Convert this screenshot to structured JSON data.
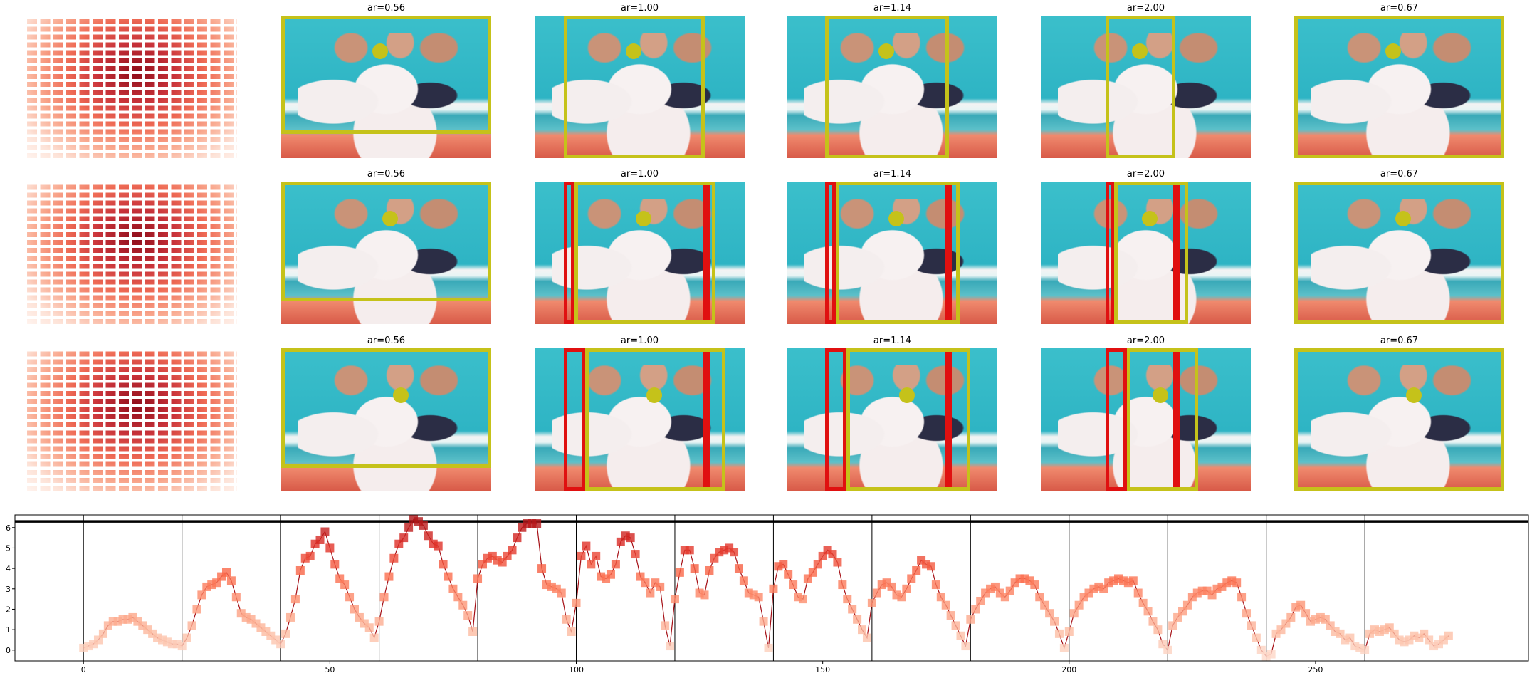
{
  "panel_titles": [
    [
      "ar=0.56",
      "ar=1.00",
      "ar=1.14",
      "ar=2.00",
      "ar=0.67"
    ],
    [
      "ar=0.56",
      "ar=1.00",
      "ar=1.14",
      "ar=2.00",
      "ar=0.67"
    ],
    [
      "ar=0.56",
      "ar=1.00",
      "ar=1.14",
      "ar=2.00",
      "ar=0.67"
    ]
  ],
  "chart_data": {
    "type": "line",
    "x": [
      0,
      1,
      2,
      3,
      4,
      5,
      6,
      7,
      8,
      9,
      10,
      11,
      12,
      13,
      14,
      15,
      16,
      17,
      18,
      19,
      20,
      21,
      22,
      23,
      24,
      25,
      26,
      27,
      28,
      29,
      30,
      31,
      32,
      33,
      34,
      35,
      36,
      37,
      38,
      39,
      40,
      41,
      42,
      43,
      44,
      45,
      46,
      47,
      48,
      49,
      50,
      51,
      52,
      53,
      54,
      55,
      56,
      57,
      58,
      59,
      60,
      61,
      62,
      63,
      64,
      65,
      66,
      67,
      68,
      69,
      70,
      71,
      72,
      73,
      74,
      75,
      76,
      77,
      78,
      79,
      80,
      81,
      82,
      83,
      84,
      85,
      86,
      87,
      88,
      89,
      90,
      91,
      92,
      93,
      94,
      95,
      96,
      97,
      98,
      99,
      100,
      101,
      102,
      103,
      104,
      105,
      106,
      107,
      108,
      109,
      110,
      111,
      112,
      113,
      114,
      115,
      116,
      117,
      118,
      119,
      120,
      121,
      122,
      123,
      124,
      125,
      126,
      127,
      128,
      129,
      130,
      131,
      132,
      133,
      134,
      135,
      136,
      137,
      138,
      139,
      140,
      141,
      142,
      143,
      144,
      145,
      146,
      147,
      148,
      149,
      150,
      151,
      152,
      153,
      154,
      155,
      156,
      157,
      158,
      159,
      160,
      161,
      162,
      163,
      164,
      165,
      166,
      167,
      168,
      169,
      170,
      171,
      172,
      173,
      174,
      175,
      176,
      177,
      178,
      179,
      180,
      181,
      182,
      183,
      184,
      185,
      186,
      187,
      188,
      189,
      190,
      191,
      192,
      193,
      194,
      195,
      196,
      197,
      198,
      199,
      200,
      201,
      202,
      203,
      204,
      205,
      206,
      207,
      208,
      209,
      210,
      211,
      212,
      213,
      214,
      215,
      216,
      217,
      218,
      219,
      220,
      221,
      222,
      223,
      224,
      225,
      226,
      227,
      228,
      229,
      230,
      231,
      232,
      233,
      234,
      235,
      236,
      237,
      238,
      239,
      240,
      241,
      242,
      243,
      244,
      245,
      246,
      247,
      248,
      249,
      250,
      251,
      252,
      253,
      254,
      255,
      256,
      257,
      258,
      259,
      260,
      261,
      262,
      263,
      264,
      265,
      266,
      267,
      268,
      269,
      270,
      271,
      272,
      273,
      274,
      275,
      276,
      277
    ],
    "values": [
      0.1,
      0.2,
      0.3,
      0.5,
      0.8,
      1.2,
      1.4,
      1.4,
      1.5,
      1.5,
      1.6,
      1.4,
      1.2,
      1.0,
      0.8,
      0.6,
      0.5,
      0.4,
      0.3,
      0.3,
      0.2,
      0.6,
      1.2,
      2.0,
      2.7,
      3.1,
      3.2,
      3.3,
      3.6,
      3.8,
      3.4,
      2.6,
      1.8,
      1.6,
      1.5,
      1.3,
      1.1,
      0.9,
      0.7,
      0.5,
      0.3,
      0.8,
      1.6,
      2.5,
      3.9,
      4.5,
      4.6,
      5.2,
      5.4,
      5.8,
      5.0,
      4.2,
      3.5,
      3.2,
      2.6,
      2.0,
      1.6,
      1.3,
      1.1,
      0.6,
      1.4,
      2.6,
      3.6,
      4.5,
      5.2,
      5.5,
      6.0,
      6.4,
      6.3,
      6.1,
      5.6,
      5.2,
      5.1,
      4.2,
      3.6,
      3.0,
      2.6,
      2.2,
      1.7,
      0.9,
      3.5,
      4.2,
      4.5,
      4.6,
      4.4,
      4.3,
      4.6,
      4.9,
      5.5,
      6.0,
      6.2,
      6.2,
      6.2,
      4.0,
      3.2,
      3.1,
      3.0,
      2.8,
      1.5,
      0.9,
      2.3,
      4.6,
      5.1,
      4.2,
      4.6,
      3.6,
      3.5,
      3.7,
      4.2,
      5.3,
      5.6,
      5.5,
      4.7,
      3.6,
      3.3,
      2.8,
      3.3,
      3.1,
      1.2,
      0.2,
      2.5,
      3.8,
      4.9,
      4.9,
      4.0,
      2.8,
      2.7,
      3.9,
      4.5,
      4.8,
      4.9,
      5.0,
      4.8,
      4.0,
      3.4,
      2.8,
      2.7,
      2.6,
      1.4,
      0.1,
      3.0,
      4.1,
      4.2,
      3.7,
      3.2,
      2.6,
      2.5,
      3.5,
      3.8,
      4.2,
      4.6,
      4.9,
      4.7,
      4.3,
      3.2,
      2.5,
      2.0,
      1.5,
      1.0,
      0.6,
      2.3,
      2.8,
      3.2,
      3.3,
      3.1,
      2.7,
      2.6,
      3.0,
      3.5,
      3.9,
      4.4,
      4.2,
      4.1,
      3.2,
      2.6,
      2.2,
      1.7,
      1.2,
      0.7,
      0.2,
      1.5,
      2.0,
      2.4,
      2.8,
      3.0,
      3.1,
      2.8,
      2.6,
      2.9,
      3.3,
      3.5,
      3.5,
      3.4,
      3.2,
      2.6,
      2.2,
      1.8,
      1.4,
      0.8,
      0.1,
      0.9,
      1.8,
      2.2,
      2.6,
      2.8,
      3.0,
      3.1,
      3.0,
      3.3,
      3.4,
      3.5,
      3.4,
      3.3,
      3.4,
      2.8,
      2.3,
      1.9,
      1.4,
      1.0,
      0.3,
      0.0,
      1.2,
      1.6,
      1.9,
      2.2,
      2.6,
      2.8,
      2.9,
      2.9,
      2.7,
      3.0,
      3.1,
      3.3,
      3.4,
      3.3,
      2.6,
      1.8,
      1.2,
      0.6,
      0.0,
      -0.3,
      -0.2,
      0.8,
      1.0,
      1.3,
      1.6,
      2.1,
      2.2,
      1.8,
      1.4,
      1.5,
      1.6,
      1.5,
      1.2,
      0.9,
      0.8,
      0.5,
      0.6,
      0.2,
      0.1,
      0.0,
      0.8,
      1.0,
      0.9,
      1.0,
      1.1,
      0.8,
      0.5,
      0.4,
      0.5,
      0.7,
      0.6,
      0.8,
      0.5,
      0.2,
      0.3,
      0.5,
      0.7
    ],
    "color": "#a50f15",
    "colormap": [
      "#fee0d2",
      "#fcbba1",
      "#fc9272",
      "#fb6a4a",
      "#de2d26",
      "#a50f15"
    ],
    "xlim": [
      -13.9,
      293.2
    ],
    "ylim": [
      -0.53,
      6.62
    ],
    "xticks": [
      0,
      50,
      100,
      150,
      200,
      250
    ],
    "yticks": [
      0,
      1,
      2,
      3,
      4,
      5,
      6
    ],
    "vlines": [
      0,
      20,
      40,
      60,
      80,
      100,
      120,
      140,
      160,
      180,
      200,
      220,
      240,
      260
    ],
    "hline": 6.3
  }
}
